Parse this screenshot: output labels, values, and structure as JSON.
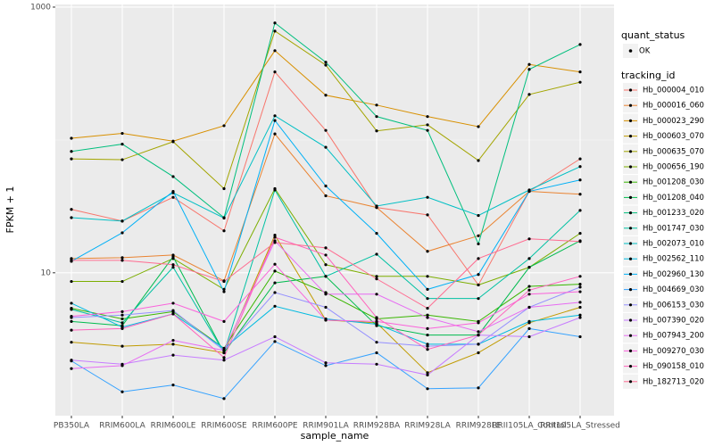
{
  "chart_data": {
    "type": "line",
    "log_y": true,
    "grid": true,
    "x_label": "sample_name",
    "y_label": "FPKM + 1",
    "categories": [
      "PB350LA",
      "RRIM600LA",
      "RRIM600LE",
      "RRIM600SE",
      "RRIM600PE",
      "RRIM901LA",
      "RRIM928BA",
      "RRIM928LA",
      "RRIM928LE",
      "RRII105LA_Control",
      "RRII105LA_Stressed"
    ],
    "ylim": [
      0.84,
      1047
    ],
    "yticks": [
      10,
      1000
    ],
    "y_minor_ticks": [
      100
    ],
    "point_legend_title": "quant_status",
    "point_legend_label": "OK",
    "point_color": "#000000",
    "legend_title": "tracking_id",
    "series": [
      {
        "name": "Hb_000004_010",
        "color": "#F8766D",
        "values": [
          30,
          24.5,
          37,
          20.7,
          325,
          118,
          31,
          27.3,
          8.1,
          41,
          72
        ]
      },
      {
        "name": "Hb_000016_060",
        "color": "#EA8331",
        "values": [
          12.8,
          13,
          13.6,
          8.7,
          111,
          38,
          31,
          14.5,
          19,
          41,
          39
        ]
      },
      {
        "name": "Hb_000023_290",
        "color": "#D89000",
        "values": [
          103,
          112,
          98,
          128,
          470,
          217,
          183,
          150,
          126,
          370,
          325
        ]
      },
      {
        "name": "Hb_000603_070",
        "color": "#C09B00",
        "values": [
          3.0,
          2.8,
          2.9,
          2.5,
          19.2,
          4.4,
          4.2,
          1.77,
          2.5,
          4.2,
          5.5
        ]
      },
      {
        "name": "Hb_000635_070",
        "color": "#A3A500",
        "values": [
          72,
          71,
          97,
          43,
          660,
          366,
          117,
          130,
          70,
          220,
          272
        ]
      },
      {
        "name": "Hb_000656_190",
        "color": "#7CAE00",
        "values": [
          8.6,
          8.6,
          12.8,
          7.5,
          43,
          11.5,
          9.4,
          9.4,
          8.1,
          11,
          19.8
        ]
      },
      {
        "name": "Hb_001208_030",
        "color": "#39B600",
        "values": [
          5.4,
          4.5,
          5.1,
          2.7,
          10.3,
          7.1,
          4.5,
          4.8,
          4.3,
          7.9,
          8.2
        ]
      },
      {
        "name": "Hb_001208_040",
        "color": "#00BB4E",
        "values": [
          4.3,
          4.0,
          13.2,
          2.5,
          8.4,
          9.4,
          4.0,
          3.4,
          3.4,
          11,
          17.4
        ]
      },
      {
        "name": "Hb_001233_020",
        "color": "#00BF7D",
        "values": [
          82,
          93,
          53,
          26,
          760,
          385,
          150,
          118,
          16.5,
          340,
          523
        ]
      },
      {
        "name": "Hb_001747_030",
        "color": "#00C1A3",
        "values": [
          5.3,
          4.2,
          11,
          2.5,
          42,
          9.4,
          13.8,
          6.4,
          6.4,
          12.8,
          29.5
        ]
      },
      {
        "name": "Hb_002073_010",
        "color": "#00BFC4",
        "values": [
          26,
          24.5,
          40,
          25.8,
          152,
          88,
          31.8,
          37,
          27,
          42,
          63
        ]
      },
      {
        "name": "Hb_002562_110",
        "color": "#00BAE0",
        "values": [
          5.9,
          3.9,
          4.9,
          2.7,
          5.6,
          4.5,
          4.1,
          2.9,
          2.9,
          4.3,
          4.8
        ]
      },
      {
        "name": "Hb_002960_130",
        "color": "#00B0F6",
        "values": [
          12.2,
          20,
          41,
          7.2,
          140,
          45,
          19.8,
          7.5,
          9.7,
          41,
          50
        ]
      },
      {
        "name": "Hb_004669_030",
        "color": "#35A2FF",
        "values": [
          2.17,
          1.27,
          1.43,
          1.13,
          3.04,
          2.0,
          2.5,
          1.34,
          1.36,
          3.8,
          3.3
        ]
      },
      {
        "name": "Hb_006153_030",
        "color": "#9590FF",
        "values": [
          4.6,
          4.8,
          5.2,
          2.6,
          7.1,
          5.5,
          3.0,
          2.8,
          2.9,
          5.5,
          7.8
        ]
      },
      {
        "name": "Hb_007390_020",
        "color": "#C77CFF",
        "values": [
          2.2,
          2.05,
          2.4,
          2.2,
          3.3,
          2.1,
          2.05,
          1.7,
          3.4,
          3.3,
          4.6
        ]
      },
      {
        "name": "Hb_007943_200",
        "color": "#E76BF3",
        "values": [
          1.9,
          2.0,
          3.1,
          2.6,
          17.4,
          6.9,
          6.9,
          4.6,
          3.6,
          5.5,
          6.0
        ]
      },
      {
        "name": "Hb_009270_030",
        "color": "#FA62DB",
        "values": [
          4.7,
          5.1,
          5.9,
          4.3,
          11.6,
          4.4,
          4.3,
          3.8,
          4.2,
          6.9,
          7.2
        ]
      },
      {
        "name": "Hb_090158_010",
        "color": "#FF62BC",
        "values": [
          3.7,
          3.8,
          4.9,
          2.3,
          18.5,
          13.6,
          4.6,
          2.65,
          3.4,
          7.4,
          9.4
        ]
      },
      {
        "name": "Hb_182713_020",
        "color": "#FF6C91",
        "values": [
          12.4,
          12.4,
          11.5,
          8.6,
          16.9,
          15.4,
          9.0,
          5.4,
          12.8,
          18,
          17.2
        ]
      }
    ]
  }
}
